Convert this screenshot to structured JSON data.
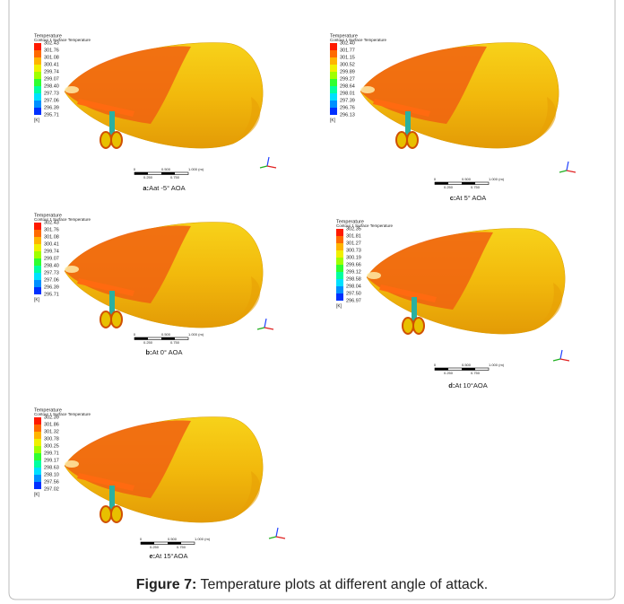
{
  "panels": [
    {
      "legend": {
        "title": "Temperature",
        "subtitle": "Contour 1 Surface Temperature",
        "values": [
          "302.43",
          "301.76",
          "301.08",
          "300.41",
          "299.74",
          "299.07",
          "298.40",
          "297.73",
          "297.06",
          "296.39",
          "295.71"
        ],
        "unit": "[K]"
      },
      "scale": {
        "top": [
          "0",
          "0.500",
          "1.000 (m)"
        ],
        "bottom": [
          "0.250",
          "0.750"
        ]
      },
      "caption": {
        "label": "a:",
        "text": "Aat -5° AOA"
      }
    },
    {
      "legend": {
        "title": "Temperature",
        "subtitle": "Contour 1 Surface Temperature",
        "values": [
          "302.43",
          "301.76",
          "301.08",
          "300.41",
          "299.74",
          "299.07",
          "298.40",
          "297.73",
          "297.06",
          "296.39",
          "295.71"
        ],
        "unit": "[K]"
      },
      "scale": {
        "top": [
          "0",
          "0.500",
          "1.000 (m)"
        ],
        "bottom": [
          "0.250",
          "0.750"
        ]
      },
      "caption": {
        "label": "b:",
        "text": "At 0° AOA"
      }
    },
    {
      "legend": {
        "title": "Temperature",
        "subtitle": "Contour 1 Surface Temperature",
        "values": [
          "302.40",
          "301.77",
          "301.15",
          "300.52",
          "299.89",
          "299.27",
          "298.64",
          "298.01",
          "297.39",
          "296.76",
          "296.13"
        ],
        "unit": "[K]"
      },
      "scale": {
        "top": [
          "0",
          "0.500",
          "1.000 (m)"
        ],
        "bottom": [
          "0.250",
          "0.750"
        ]
      },
      "caption": {
        "label": "c:",
        "text": "At 5° AOA"
      }
    },
    {
      "legend": {
        "title": "Temperature",
        "subtitle": "Contour 1 Surface Temperature",
        "values": [
          "302.35",
          "301.81",
          "301.27",
          "300.73",
          "300.19",
          "299.66",
          "299.12",
          "298.58",
          "298.04",
          "297.50",
          "296.97"
        ],
        "unit": "[K]"
      },
      "scale": {
        "top": [
          "0",
          "0.500",
          "1.000 (m)"
        ],
        "bottom": [
          "0.250",
          "0.750"
        ]
      },
      "caption": {
        "label": "d:",
        "text": "At 10°AOA"
      }
    },
    {
      "legend": {
        "title": "Temperature",
        "subtitle": "Contour 1 Surface Temperature",
        "values": [
          "302.39",
          "301.86",
          "301.32",
          "300.78",
          "300.25",
          "299.71",
          "299.17",
          "298.63",
          "298.10",
          "297.56",
          "297.02"
        ],
        "unit": "[K]"
      },
      "scale": {
        "top": [
          "0",
          "0.500",
          "1.000 (m)"
        ],
        "bottom": [
          "0.250",
          "0.750"
        ]
      },
      "caption": {
        "label": "e:",
        "text": "At 15°AOA"
      }
    }
  ],
  "figure_caption": {
    "label": "Figure 7:",
    "text": "Temperature plots at different angle of attack."
  }
}
